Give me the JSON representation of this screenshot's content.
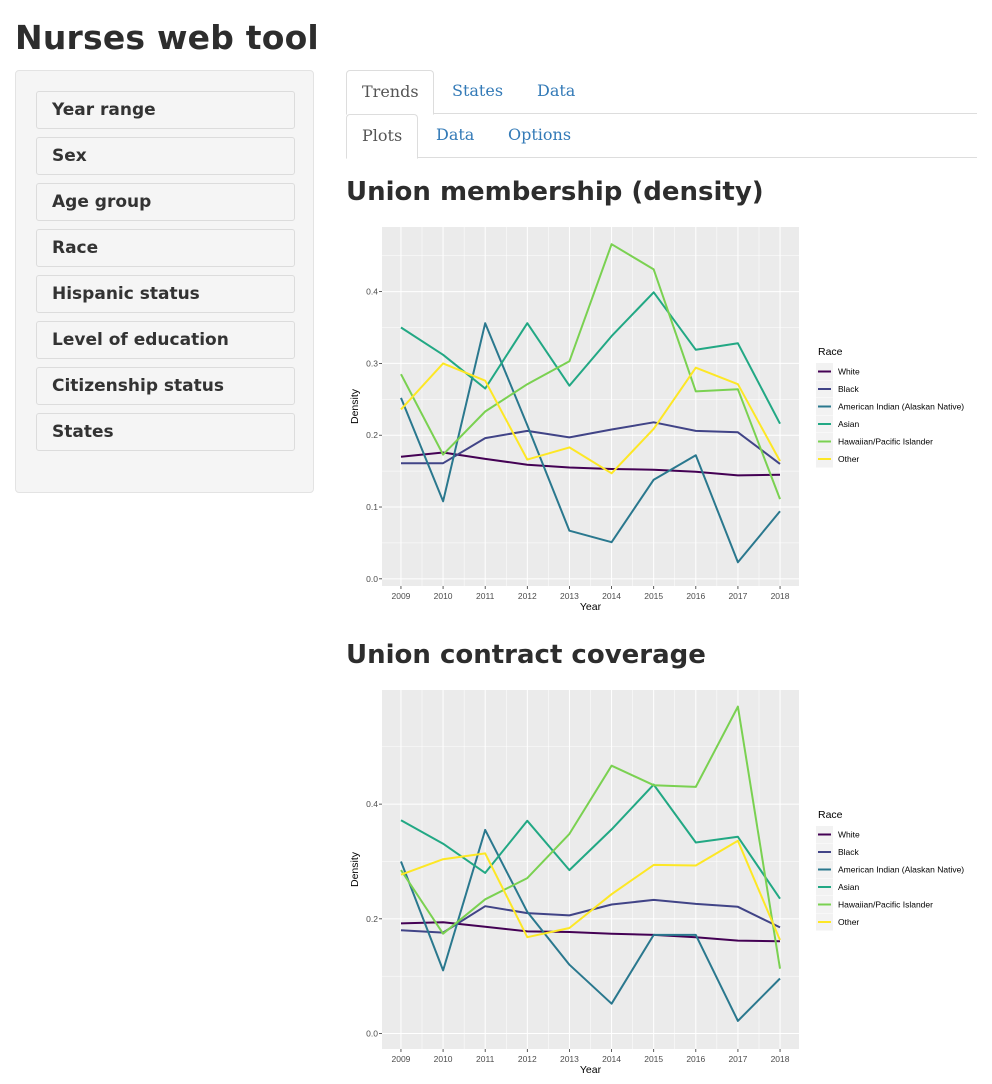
{
  "app": {
    "title": "Nurses web tool"
  },
  "sidebar": {
    "items": [
      {
        "label": "Year range"
      },
      {
        "label": "Sex"
      },
      {
        "label": "Age group"
      },
      {
        "label": "Race"
      },
      {
        "label": "Hispanic status"
      },
      {
        "label": "Level of education"
      },
      {
        "label": "Citizenship status"
      },
      {
        "label": "States"
      }
    ]
  },
  "tabs": {
    "main": [
      {
        "label": "Trends",
        "active": true
      },
      {
        "label": "States",
        "active": false
      },
      {
        "label": "Data",
        "active": false
      }
    ],
    "sub": [
      {
        "label": "Plots",
        "active": true
      },
      {
        "label": "Data",
        "active": false
      },
      {
        "label": "Options",
        "active": false
      }
    ]
  },
  "sections": [
    {
      "title": "Union membership (density)"
    },
    {
      "title": "Union contract coverage"
    }
  ],
  "chart_data": [
    {
      "type": "line",
      "title": "",
      "xlabel": "Year",
      "ylabel": "Density",
      "legend_title": "Race",
      "legend_position": "right",
      "grid": true,
      "x": [
        2009,
        2010,
        2011,
        2012,
        2013,
        2014,
        2015,
        2016,
        2017,
        2018
      ],
      "xticks": [
        "2009",
        "2010",
        "2011",
        "2012",
        "2013",
        "2014",
        "2015",
        "2016",
        "2017",
        "2018"
      ],
      "yticks": [
        0.0,
        0.1,
        0.2,
        0.3,
        0.4
      ],
      "ytick_labels": [
        "0.0",
        "0.1",
        "0.2",
        "0.3",
        "0.4"
      ],
      "ylim": [
        -0.01,
        0.49
      ],
      "series": [
        {
          "name": "White",
          "color": "#440154",
          "values": [
            0.17,
            0.176,
            0.167,
            0.159,
            0.155,
            0.153,
            0.152,
            0.149,
            0.144,
            0.145
          ]
        },
        {
          "name": "Black",
          "color": "#414487",
          "values": [
            0.161,
            0.161,
            0.196,
            0.206,
            0.197,
            0.208,
            0.218,
            0.206,
            0.204,
            0.16
          ]
        },
        {
          "name": "American Indian (Alaskan Native)",
          "color": "#2A788E",
          "values": [
            0.252,
            0.108,
            0.356,
            0.214,
            0.067,
            0.051,
            0.138,
            0.172,
            0.023,
            0.094
          ]
        },
        {
          "name": "Asian",
          "color": "#22A884",
          "values": [
            0.35,
            0.312,
            0.265,
            0.356,
            0.269,
            0.338,
            0.399,
            0.319,
            0.328,
            0.216
          ]
        },
        {
          "name": "Hawaiian/Pacific Islander",
          "color": "#7AD151",
          "values": [
            0.285,
            0.173,
            0.233,
            0.271,
            0.303,
            0.466,
            0.431,
            0.261,
            0.264,
            0.111
          ]
        },
        {
          "name": "Other",
          "color": "#FDE725",
          "values": [
            0.236,
            0.3,
            0.276,
            0.166,
            0.183,
            0.147,
            0.209,
            0.294,
            0.271,
            0.164
          ]
        }
      ]
    },
    {
      "type": "line",
      "title": "",
      "xlabel": "Year",
      "ylabel": "Density",
      "legend_title": "Race",
      "legend_position": "right",
      "grid": true,
      "x": [
        2009,
        2010,
        2011,
        2012,
        2013,
        2014,
        2015,
        2016,
        2017,
        2018
      ],
      "xticks": [
        "2009",
        "2010",
        "2011",
        "2012",
        "2013",
        "2014",
        "2015",
        "2016",
        "2017",
        "2018"
      ],
      "yticks": [
        0.0,
        0.2,
        0.4
      ],
      "ytick_labels": [
        "0.0",
        "0.2",
        "0.4"
      ],
      "ylim": [
        -0.027,
        0.599
      ],
      "series": [
        {
          "name": "White",
          "color": "#440154",
          "values": [
            0.192,
            0.194,
            0.186,
            0.178,
            0.177,
            0.174,
            0.172,
            0.168,
            0.162,
            0.161
          ]
        },
        {
          "name": "Black",
          "color": "#414487",
          "values": [
            0.18,
            0.176,
            0.222,
            0.21,
            0.206,
            0.225,
            0.233,
            0.226,
            0.221,
            0.185
          ]
        },
        {
          "name": "American Indian (Alaskan Native)",
          "color": "#2A788E",
          "values": [
            0.3,
            0.11,
            0.355,
            0.212,
            0.12,
            0.052,
            0.172,
            0.172,
            0.022,
            0.096
          ]
        },
        {
          "name": "Asian",
          "color": "#22A884",
          "values": [
            0.372,
            0.331,
            0.28,
            0.371,
            0.285,
            0.356,
            0.434,
            0.333,
            0.343,
            0.235
          ]
        },
        {
          "name": "Hawaiian/Pacific Islander",
          "color": "#7AD151",
          "values": [
            0.285,
            0.174,
            0.234,
            0.271,
            0.348,
            0.467,
            0.433,
            0.43,
            0.57,
            0.113
          ]
        },
        {
          "name": "Other",
          "color": "#FDE725",
          "values": [
            0.277,
            0.304,
            0.314,
            0.168,
            0.184,
            0.243,
            0.294,
            0.293,
            0.336,
            0.163
          ]
        }
      ]
    }
  ]
}
